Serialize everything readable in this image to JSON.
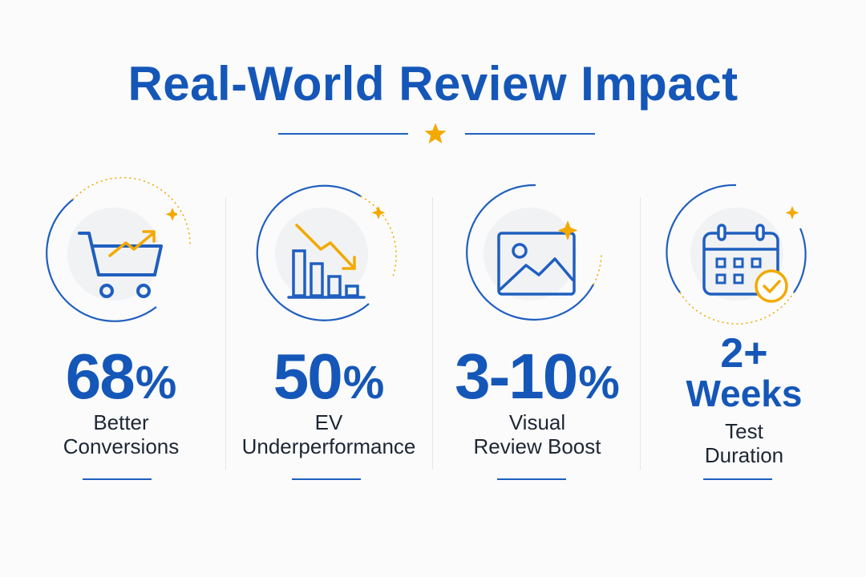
{
  "title": "Real-World Review Impact",
  "colors": {
    "brand_blue": "#1557b8",
    "accent_gold": "#f2a900",
    "text_dark": "#1d2733"
  },
  "stats": [
    {
      "value": "68",
      "unit": "%",
      "label_line1": "Better",
      "label_line2": "Conversions",
      "icon": "shopping-cart-trend-up-icon"
    },
    {
      "value": "50",
      "unit": "%",
      "label_line1": "EV",
      "label_line2": "Underperformance",
      "icon": "bar-chart-trend-down-icon"
    },
    {
      "value": "3-10",
      "unit": "%",
      "label_line1": "Visual",
      "label_line2": "Review Boost",
      "icon": "image-sparkle-icon"
    },
    {
      "value_line1": "2+",
      "value_line2": "Weeks",
      "label_line1": "Test",
      "label_line2": "Duration",
      "icon": "calendar-check-icon"
    }
  ]
}
